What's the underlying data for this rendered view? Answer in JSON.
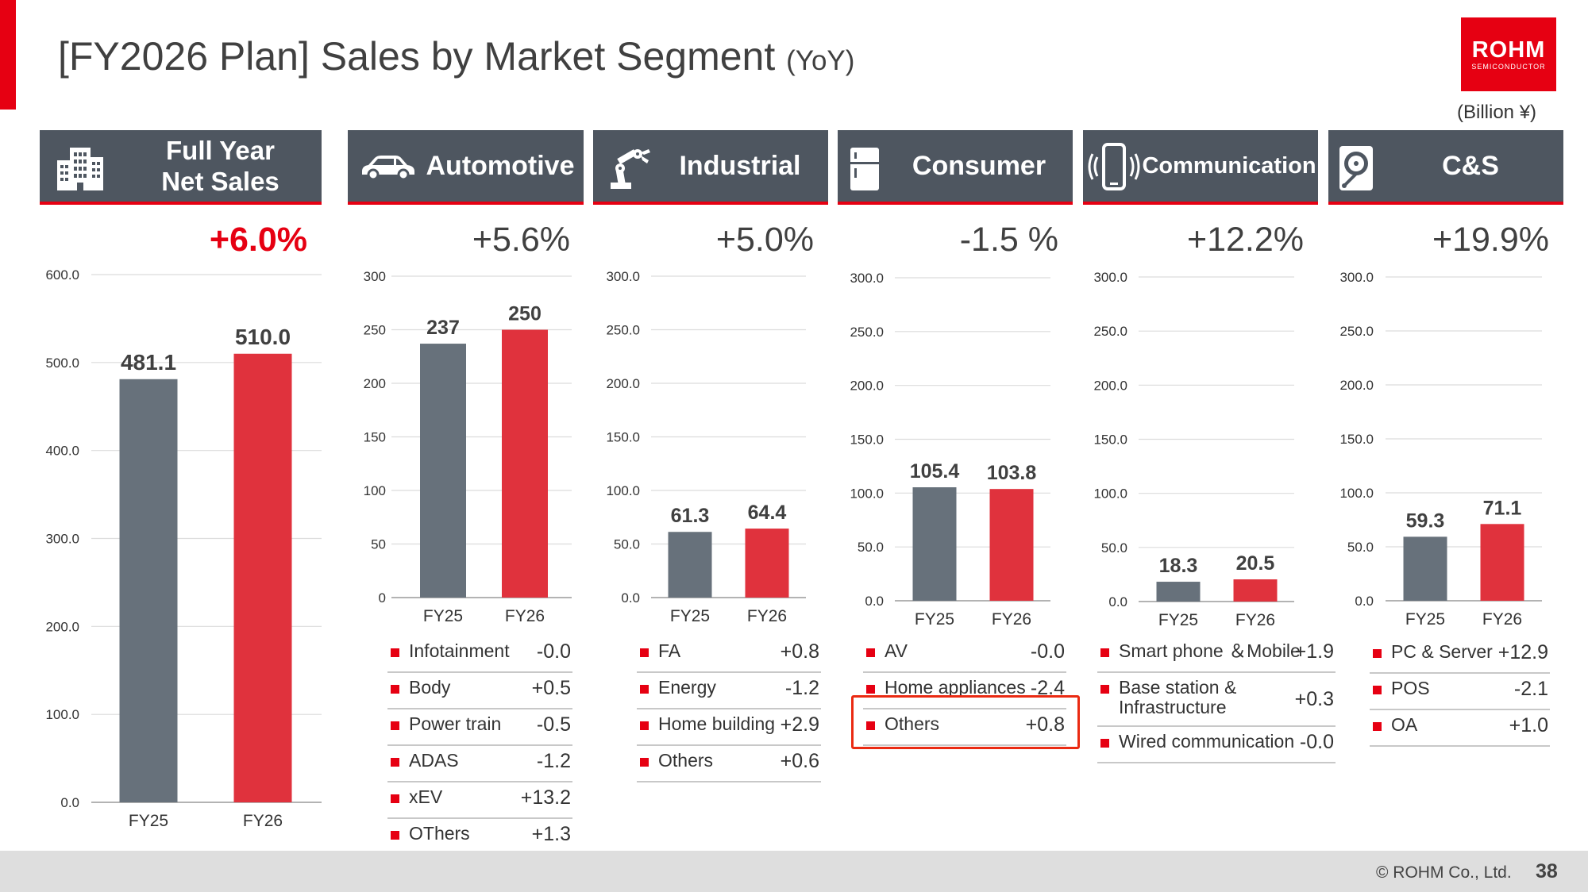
{
  "header": {
    "title": "[FY2026 Plan] Sales by Market Segment",
    "subtitle": "(YoY)",
    "logo_text": "ROHM",
    "logo_sub": "SEMICONDUCTOR",
    "unit": "(Billion ¥)"
  },
  "colors": {
    "fy25": "#67717b",
    "fy26": "#e0323d",
    "accent": "#e60012",
    "header_bg": "#4e5660"
  },
  "panels": [
    {
      "id": "full-year",
      "title": "Full Year\nNet Sales",
      "icon": "building-icon",
      "growth": "+6.0%"
    },
    {
      "id": "automotive",
      "title": "Automotive",
      "icon": "car-icon",
      "growth": "+5.6%"
    },
    {
      "id": "industrial",
      "title": "Industrial",
      "icon": "robot-arm-icon",
      "growth": "+5.0%"
    },
    {
      "id": "consumer",
      "title": "Consumer",
      "icon": "refrigerator-icon",
      "growth": "-1.5 %"
    },
    {
      "id": "communication",
      "title": "Communication",
      "icon": "smartphone-icon",
      "growth": "+12.2%"
    },
    {
      "id": "cs",
      "title": "C&S",
      "icon": "hard-disk-icon",
      "growth": "+19.9%"
    }
  ],
  "chart_data": [
    {
      "type": "bar",
      "title": "Full Year Net Sales",
      "categories": [
        "FY25",
        "FY26"
      ],
      "values": [
        481.1,
        510.0
      ],
      "value_labels": [
        "481.1",
        "510.0"
      ],
      "ylim": [
        0,
        600
      ],
      "yticks": [
        "0.0",
        "100.0",
        "200.0",
        "300.0",
        "400.0",
        "500.0",
        "600.0"
      ]
    },
    {
      "type": "bar",
      "title": "Automotive",
      "categories": [
        "FY25",
        "FY26"
      ],
      "values": [
        237,
        250
      ],
      "value_labels": [
        "237",
        "250"
      ],
      "ylim": [
        0,
        300
      ],
      "yticks": [
        "0",
        "50",
        "100",
        "150",
        "200",
        "250",
        "300"
      ]
    },
    {
      "type": "bar",
      "title": "Industrial",
      "categories": [
        "FY25",
        "FY26"
      ],
      "values": [
        61.3,
        64.4
      ],
      "value_labels": [
        "61.3",
        "64.4"
      ],
      "ylim": [
        0,
        300
      ],
      "yticks": [
        "0.0",
        "50.0",
        "100.0",
        "150.0",
        "200.0",
        "250.0",
        "300.0"
      ]
    },
    {
      "type": "bar",
      "title": "Consumer",
      "categories": [
        "FY25",
        "FY26"
      ],
      "values": [
        105.4,
        103.8
      ],
      "value_labels": [
        "105.4",
        "103.8"
      ],
      "ylim": [
        0,
        300
      ],
      "yticks": [
        "0.0",
        "50.0",
        "100.0",
        "150.0",
        "200.0",
        "250.0",
        "300.0"
      ]
    },
    {
      "type": "bar",
      "title": "Communication",
      "categories": [
        "FY25",
        "FY26"
      ],
      "values": [
        18.3,
        20.5
      ],
      "value_labels": [
        "18.3",
        "20.5"
      ],
      "ylim": [
        0,
        300
      ],
      "yticks": [
        "0.0",
        "50.0",
        "100.0",
        "150.0",
        "200.0",
        "250.0",
        "300.0"
      ]
    },
    {
      "type": "bar",
      "title": "C&S",
      "categories": [
        "FY25",
        "FY26"
      ],
      "values": [
        59.3,
        71.1
      ],
      "value_labels": [
        "59.3",
        "71.1"
      ],
      "ylim": [
        0,
        300
      ],
      "yticks": [
        "0.0",
        "50.0",
        "100.0",
        "150.0",
        "200.0",
        "250.0",
        "300.0"
      ]
    }
  ],
  "breakdowns": {
    "automotive": [
      {
        "label": "Infotainment",
        "value": "-0.0"
      },
      {
        "label": "Body",
        "value": "+0.5"
      },
      {
        "label": "Power train",
        "value": "-0.5"
      },
      {
        "label": "ADAS",
        "value": "-1.2"
      },
      {
        "label": "xEV",
        "value": "+13.2"
      },
      {
        "label": "OThers",
        "value": "+1.3"
      }
    ],
    "industrial": [
      {
        "label": "FA",
        "value": "+0.8"
      },
      {
        "label": "Energy",
        "value": "-1.2"
      },
      {
        "label": "Home building",
        "value": "+2.9"
      },
      {
        "label": "Others",
        "value": "+0.6"
      }
    ],
    "consumer": [
      {
        "label": "AV",
        "value": "-0.0"
      },
      {
        "label": "Home appliances",
        "value": "-2.4"
      },
      {
        "label": "Others",
        "value": "+0.8"
      }
    ],
    "communication": [
      {
        "label": "Smart phone ＆Mobile",
        "value": "+1.9"
      },
      {
        "label": "Base station &\nInfrastructure",
        "value": "+0.3"
      },
      {
        "label": "Wired communication",
        "value": "-0.0"
      }
    ],
    "cs": [
      {
        "label": "PC & Server",
        "value": "+12.9"
      },
      {
        "label": "POS",
        "value": "-2.1"
      },
      {
        "label": "OA",
        "value": "+1.0"
      }
    ]
  },
  "footer": {
    "copyright": "© ROHM Co., Ltd.",
    "page": "38"
  }
}
